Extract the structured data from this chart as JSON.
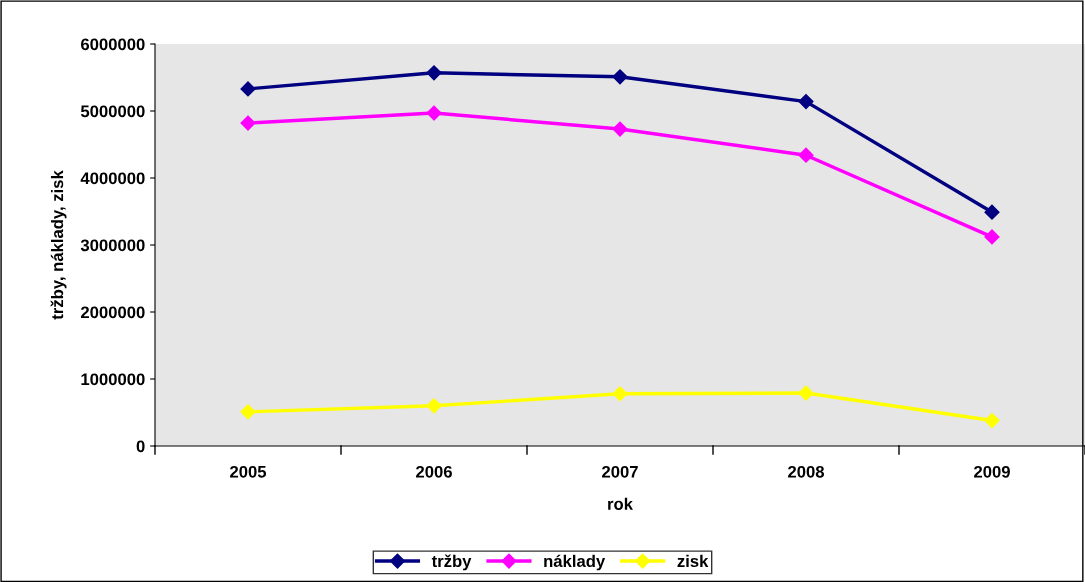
{
  "chart_data": {
    "type": "line",
    "xlabel": "rok",
    "ylabel": "tržby, náklady, zisk",
    "categories": [
      "2005",
      "2006",
      "2007",
      "2008",
      "2009"
    ],
    "series": [
      {
        "name": "tržby",
        "color": "#000080",
        "values": [
          5330000,
          5570000,
          5510000,
          5140000,
          3490000
        ]
      },
      {
        "name": "náklady",
        "color": "#ff00ff",
        "values": [
          4820000,
          4970000,
          4730000,
          4340000,
          3120000
        ]
      },
      {
        "name": "zisk",
        "color": "#ffff00",
        "values": [
          510000,
          600000,
          780000,
          790000,
          380000
        ]
      }
    ],
    "ylim": [
      0,
      6000000
    ],
    "yticks": [
      0,
      1000000,
      2000000,
      3000000,
      4000000,
      5000000,
      6000000
    ],
    "grid": false,
    "legend": "bottom",
    "marker": "diamond",
    "line_style": "solid"
  }
}
